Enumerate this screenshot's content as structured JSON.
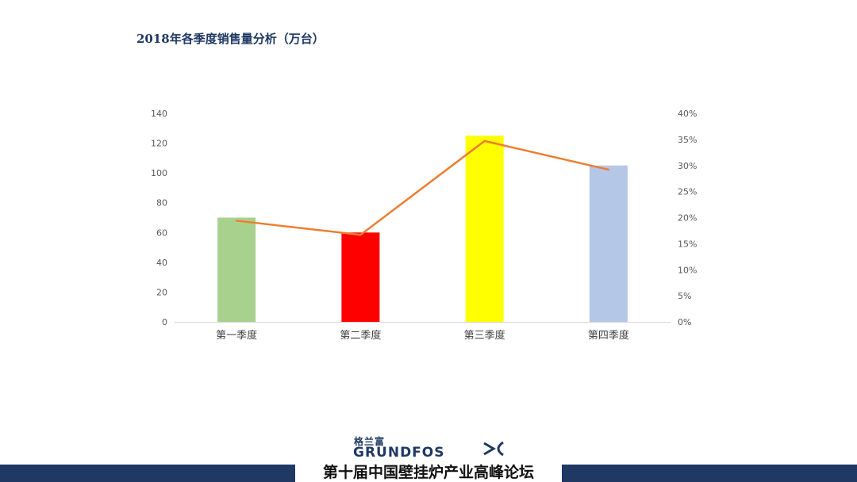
{
  "chart_data": {
    "type": "bar+line",
    "title": "2018年各季度销售量分析（万台）",
    "categories": [
      "第一季度",
      "第二季度",
      "第三季度",
      "第四季度"
    ],
    "series": [
      {
        "type": "bar",
        "values": [
          70,
          60,
          125,
          105
        ],
        "colors": [
          "#A9D18E",
          "#FF0000",
          "#FFFF00",
          "#B4C7E7"
        ],
        "axis": "left"
      },
      {
        "type": "line",
        "values": [
          19.4,
          16.7,
          34.7,
          29.2
        ],
        "color": "#ED7D31",
        "axis": "right",
        "unit": "%"
      }
    ],
    "y_left": {
      "ylim": [
        0,
        140
      ],
      "ticks": [
        "0",
        "20",
        "40",
        "60",
        "80",
        "100",
        "120",
        "140"
      ]
    },
    "y_right": {
      "ylim": [
        0,
        40
      ],
      "ticks": [
        "0%",
        "5%",
        "10%",
        "15%",
        "20%",
        "25%",
        "30%",
        "35%",
        "40%"
      ]
    },
    "grid": false,
    "legend": "none"
  },
  "footer": {
    "logo_cn": "格兰富",
    "logo_en": "GRUNDFOS",
    "event": "第十届中国壁挂炉产业高峰论坛",
    "bar_color": "#1F3864"
  }
}
